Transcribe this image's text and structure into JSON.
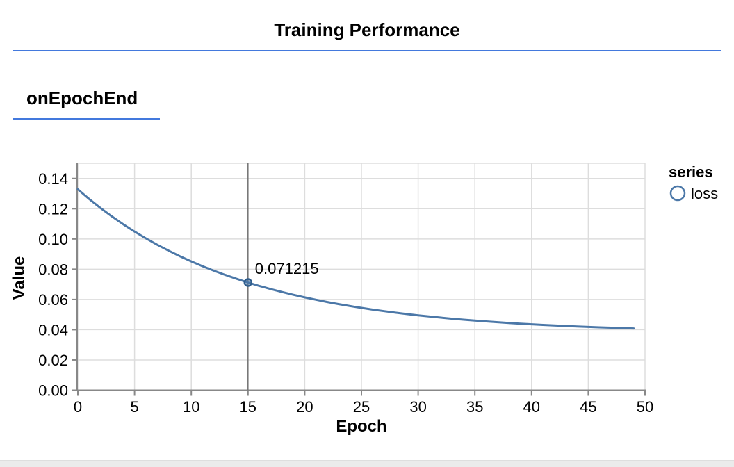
{
  "page": {
    "title": "Training Performance",
    "section_label": "onEpochEnd"
  },
  "legend": {
    "title": "series",
    "items": [
      {
        "label": "loss",
        "color": "#4c78a8"
      }
    ]
  },
  "tooltip": {
    "label": "0.071215",
    "epoch": 15,
    "value": 0.071215
  },
  "colors": {
    "accent_blue_rule": "#4379dd",
    "line": "#4c78a8",
    "marker_stroke": "#2f5d8c",
    "grid": "#dddddd",
    "axis": "#888888",
    "hover_rule": "#737373",
    "text": "#000000",
    "bottom_strip": "#ebebeb"
  },
  "chart_data": {
    "type": "line",
    "title": "onEpochEnd",
    "xlabel": "Epoch",
    "ylabel": "Value",
    "xlim": [
      0,
      50
    ],
    "ylim": [
      0,
      0.15
    ],
    "x_ticks": [
      0,
      5,
      10,
      15,
      20,
      25,
      30,
      35,
      40,
      45,
      50
    ],
    "y_ticks": [
      0.0,
      0.02,
      0.04,
      0.06,
      0.08,
      0.1,
      0.12,
      0.14
    ],
    "grid": true,
    "legend_position": "right",
    "series": [
      {
        "name": "loss",
        "x": [
          0,
          1,
          2,
          3,
          4,
          5,
          6,
          7,
          8,
          9,
          10,
          11,
          12,
          13,
          14,
          15,
          16,
          17,
          18,
          19,
          20,
          21,
          22,
          23,
          24,
          25,
          26,
          27,
          28,
          29,
          30,
          31,
          32,
          33,
          34,
          35,
          36,
          37,
          38,
          39,
          40,
          41,
          42,
          43,
          44,
          45,
          46,
          47,
          48,
          49
        ],
        "values": [
          0.1328,
          0.126415,
          0.120459,
          0.114903,
          0.10972,
          0.104884,
          0.100373,
          0.096165,
          0.09224,
          0.088578,
          0.085162,
          0.081975,
          0.079003,
          0.07623,
          0.073643,
          0.071215,
          0.068979,
          0.066879,
          0.06492,
          0.063092,
          0.061387,
          0.059797,
          0.058313,
          0.056929,
          0.055638,
          0.054434,
          0.05331,
          0.052262,
          0.051285,
          0.050373,
          0.049522,
          0.048728,
          0.047988,
          0.047297,
          0.046653,
          0.046052,
          0.045491,
          0.044968,
          0.04448,
          0.044025,
          0.0436,
          0.043204,
          0.042835,
          0.04249,
          0.042168,
          0.041868,
          0.041588,
          0.041327,
          0.041084,
          0.040857
        ]
      }
    ],
    "highlight": {
      "x": 15,
      "y": 0.071215,
      "label": "0.071215"
    }
  }
}
